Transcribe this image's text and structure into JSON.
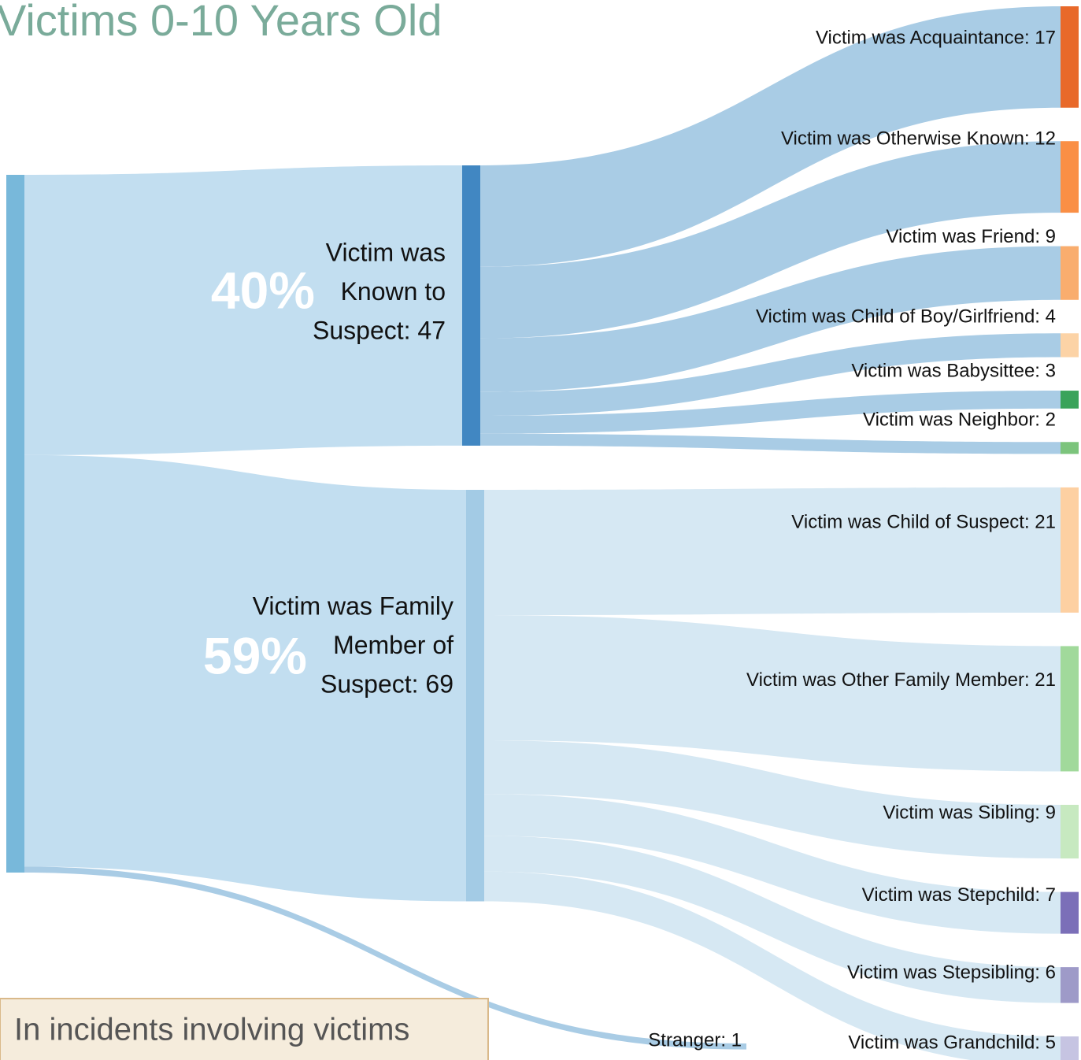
{
  "chart_data": {
    "type": "sankey",
    "title": "Victims 0-10 Years Old",
    "note": "In incidents involving victims",
    "nodes": [
      {
        "color": "#78b8da"
      },
      {
        "label_lines": [
          "Victim was",
          "Known to",
          "Suspect: 47"
        ],
        "share_label": "40%",
        "color": "#4187c2"
      },
      {
        "label_lines": [
          "Victim was Family",
          "Member of",
          "Suspect: 69"
        ],
        "share_label": "59%",
        "color": "#a3cbe5"
      },
      {
        "label": "Stranger: 1"
      },
      {
        "label": "Victim was Acquaintance: 17",
        "color": "#e8692a"
      },
      {
        "label": "Victim was Otherwise Known: 12",
        "color": "#fa8f45"
      },
      {
        "label": "Victim was Friend: 9",
        "color": "#f9ad6e"
      },
      {
        "label": "Victim was Child of Boy/Girlfriend: 4",
        "color": "#fcd3a6"
      },
      {
        "label": "Victim was Babysittee: 3",
        "color": "#3aa35a"
      },
      {
        "label": "Victim was Neighbor: 2",
        "color": "#7cc47c"
      },
      {
        "label": "Victim was Child of Suspect: 21",
        "color": "#fdd0a2"
      },
      {
        "label": "Victim was Other Family Member: 21",
        "color": "#a1d99b"
      },
      {
        "label": "Victim was Sibling: 9",
        "color": "#c7e9c0"
      },
      {
        "label": "Victim was Stepchild: 7",
        "color": "#7b6fb8"
      },
      {
        "label": "Victim was Stepsibling: 6",
        "color": "#9e9ac8"
      },
      {
        "label": "Victim was Grandchild: 5",
        "color": "#c6c4e2"
      }
    ],
    "links": [
      {
        "source": 0,
        "target": 1,
        "value": 47,
        "color": "#c2def0"
      },
      {
        "source": 0,
        "target": 2,
        "value": 69,
        "color": "#c2def0"
      },
      {
        "source": 0,
        "target": 3,
        "value": 1,
        "color": "#a9cce5"
      },
      {
        "source": 1,
        "target": 4,
        "value": 17,
        "color": "#a9cce5"
      },
      {
        "source": 1,
        "target": 5,
        "value": 12,
        "color": "#a9cce5"
      },
      {
        "source": 1,
        "target": 6,
        "value": 9,
        "color": "#a9cce5"
      },
      {
        "source": 1,
        "target": 7,
        "value": 4,
        "color": "#a9cce5"
      },
      {
        "source": 1,
        "target": 8,
        "value": 3,
        "color": "#a9cce5"
      },
      {
        "source": 1,
        "target": 9,
        "value": 2,
        "color": "#a9cce5"
      },
      {
        "source": 2,
        "target": 10,
        "value": 21,
        "color": "#d6e8f3"
      },
      {
        "source": 2,
        "target": 11,
        "value": 21,
        "color": "#d6e8f3"
      },
      {
        "source": 2,
        "target": 12,
        "value": 9,
        "color": "#d6e8f3"
      },
      {
        "source": 2,
        "target": 13,
        "value": 7,
        "color": "#d6e8f3"
      },
      {
        "source": 2,
        "target": 14,
        "value": 6,
        "color": "#d6e8f3"
      },
      {
        "source": 2,
        "target": 15,
        "value": 5,
        "color": "#d6e8f3"
      }
    ]
  }
}
